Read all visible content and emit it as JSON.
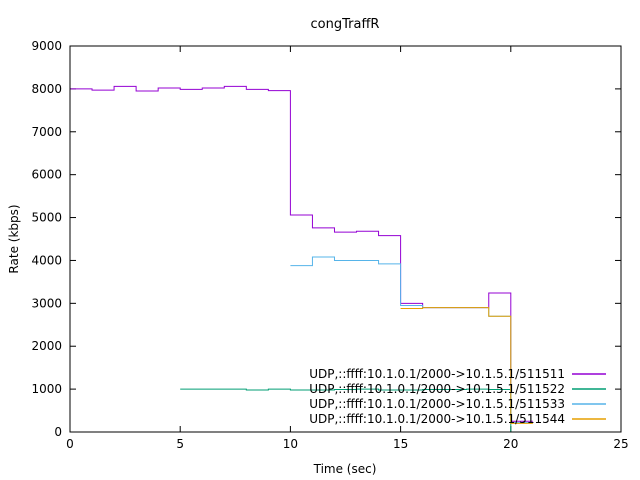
{
  "chart_data": {
    "type": "line",
    "title": "congTraffR",
    "xlabel": "Time (sec)",
    "ylabel": "Rate (kbps)",
    "xlim": [
      0,
      25
    ],
    "ylim": [
      0,
      9000
    ],
    "x_ticks": [
      0,
      5,
      10,
      15,
      20,
      25
    ],
    "y_ticks": [
      0,
      1000,
      2000,
      3000,
      4000,
      5000,
      6000,
      7000,
      8000,
      9000
    ],
    "grid": false,
    "legend_position": "bottom-right",
    "series": [
      {
        "name": "UDP,::ffff:10.1.0.1/2000->10.1.5.1/511511",
        "color": "#9400d3",
        "x": [
          0,
          1,
          2,
          3,
          4,
          5,
          6,
          7,
          8,
          9,
          10,
          11,
          12,
          13,
          14,
          15,
          16,
          17,
          18,
          19,
          20,
          21
        ],
        "y": [
          8000,
          7970,
          8060,
          7950,
          8020,
          7990,
          8020,
          8060,
          7990,
          7960,
          5060,
          4760,
          4660,
          4680,
          4580,
          3000,
          2900,
          2900,
          2900,
          3240,
          250,
          250
        ]
      },
      {
        "name": "UDP,::ffff:10.1.0.1/2000->10.1.5.1/511522",
        "color": "#009e73",
        "x": [
          5,
          6,
          7,
          8,
          9,
          10,
          11,
          12,
          13,
          14,
          15,
          16,
          17,
          18,
          19,
          20
        ],
        "y": [
          1000,
          1000,
          1000,
          980,
          1000,
          980,
          980,
          990,
          1000,
          980,
          980,
          990,
          990,
          1000,
          990,
          0
        ]
      },
      {
        "name": "UDP,::ffff:10.1.0.1/2000->10.1.5.1/511533",
        "color": "#56b4e9",
        "x": [
          10,
          11,
          12,
          13,
          14,
          15,
          16,
          17,
          18,
          19,
          20,
          21
        ],
        "y": [
          3880,
          4080,
          4000,
          4000,
          3920,
          2950,
          2900,
          2900,
          2900,
          2700,
          220,
          220
        ]
      },
      {
        "name": "UDP,::ffff:10.1.0.1/2000->10.1.5.1/511544",
        "color": "#e69f00",
        "x": [
          15,
          16,
          17,
          18,
          19,
          20,
          21
        ],
        "y": [
          2880,
          2900,
          2900,
          2900,
          2700,
          200,
          200
        ]
      }
    ]
  }
}
